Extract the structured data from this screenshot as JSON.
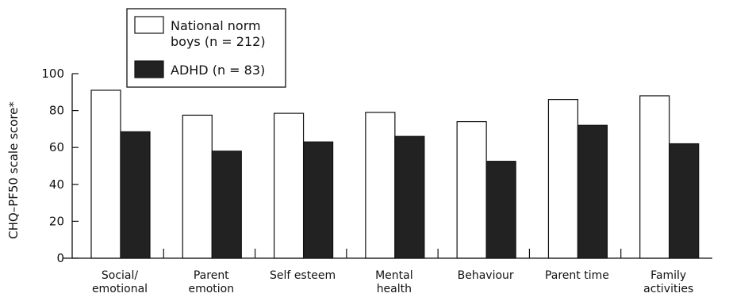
{
  "chart_data": {
    "type": "bar",
    "ylabel": "CHQ–PF50 scale score*",
    "ylim": [
      0,
      100
    ],
    "yticks": [
      0,
      20,
      40,
      60,
      80,
      100
    ],
    "legend_position": "top-left",
    "categories": [
      [
        "Social/",
        "emotional"
      ],
      [
        "Parent",
        "emotion"
      ],
      [
        "Self esteem"
      ],
      [
        "Mental",
        "health"
      ],
      [
        "Behaviour"
      ],
      [
        "Parent time"
      ],
      [
        "Family",
        "activities"
      ]
    ],
    "series": [
      {
        "name": [
          "National norm",
          "boys (n = 212)"
        ],
        "fill": "#ffffff",
        "values": [
          91,
          77.5,
          78.5,
          79,
          74,
          86,
          88
        ]
      },
      {
        "name": [
          "ADHD (n = 83)"
        ],
        "fill": "#222222",
        "values": [
          68.5,
          58,
          63,
          66,
          52.5,
          72,
          62
        ]
      }
    ]
  }
}
